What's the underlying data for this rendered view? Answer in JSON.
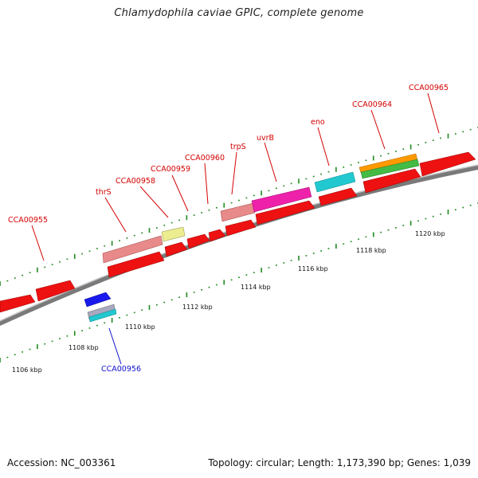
{
  "title": "Chlamydophila caviae GPIC, complete genome",
  "footer": {
    "accession": "Accession: NC_003361",
    "summary": "Topology: circular; Length: 1,173,390 bp; Genes: 1,039"
  },
  "scale_labels": [
    "1106 kbp",
    "1108 kbp",
    "1110 kbp",
    "1112 kbp",
    "1114 kbp",
    "1116 kbp",
    "1118 kbp",
    "1120 kbp"
  ],
  "gene_labels": [
    {
      "text": "CCA00955",
      "color": "#d40000"
    },
    {
      "text": "thrS",
      "color": "#d40000"
    },
    {
      "text": "CCA00958",
      "color": "#d40000"
    },
    {
      "text": "CCA00959",
      "color": "#d40000"
    },
    {
      "text": "CCA00960",
      "color": "#d40000"
    },
    {
      "text": "trpS",
      "color": "#d40000"
    },
    {
      "text": "uvrB",
      "color": "#d40000"
    },
    {
      "text": "eno",
      "color": "#d40000"
    },
    {
      "text": "CCA00964",
      "color": "#d40000"
    },
    {
      "text": "CCA00965",
      "color": "#d40000"
    },
    {
      "text": "CCA00956",
      "color": "#1010cc"
    }
  ],
  "colors": {
    "backbone": "#8a8a8a",
    "cds": "#ee1111",
    "tick": "#1d8a1d",
    "label_red": "#d40000",
    "label_blue": "#1010cc",
    "gene_pink": "#e88a8a",
    "gene_yellow": "#ecec90",
    "gene_magenta": "#ee22aa",
    "gene_cyan": "#22c8d0",
    "gene_orange": "#ff9900",
    "gene_green": "#44bb44",
    "gene_blue": "#1a1aee",
    "gene_grey": "#b0b0c0"
  }
}
